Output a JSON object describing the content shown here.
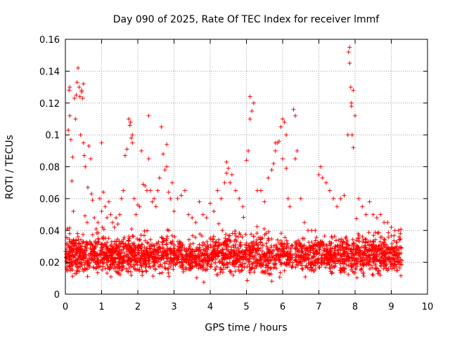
{
  "chart_data": {
    "type": "scatter",
    "title": "Day 090 of 2025, Rate Of TEC Index for receiver lmmf",
    "xlabel": "GPS time / hours",
    "ylabel": "ROTI / TECUs",
    "xlim": [
      0,
      10
    ],
    "ylim": [
      0,
      0.16
    ],
    "x_ticks": [
      "0",
      "1",
      "2",
      "3",
      "4",
      "5",
      "6",
      "7",
      "8",
      "9",
      "10"
    ],
    "y_ticks": [
      "0",
      "0.02",
      "0.04",
      "0.06",
      "0.08",
      "0.1",
      "0.12",
      "0.14",
      "0.16"
    ],
    "grid": true,
    "marker": "+",
    "color": "#ff0000",
    "series": [
      {
        "name": "ROTI",
        "x": [
          0.05,
          0.08,
          0.1,
          0.12,
          0.15,
          0.18,
          0.2,
          0.22,
          0.25,
          0.28,
          0.3,
          0.32,
          0.35,
          0.38,
          0.4,
          0.42,
          0.45,
          0.48,
          0.5,
          0.52,
          0.55,
          0.6,
          0.62,
          0.65,
          0.7,
          0.72,
          0.75,
          0.8,
          0.85,
          0.9,
          0.95,
          1.0,
          1.05,
          1.1,
          1.15,
          1.2,
          1.25,
          1.3,
          1.35,
          1.4,
          1.45,
          1.5,
          1.55,
          1.6,
          1.65,
          1.7,
          1.75,
          1.78,
          1.8,
          1.82,
          1.85,
          1.9,
          1.95,
          2.0,
          2.05,
          2.1,
          2.15,
          2.2,
          2.25,
          2.3,
          2.35,
          2.4,
          2.45,
          2.5,
          2.55,
          2.6,
          2.65,
          2.7,
          2.75,
          2.8,
          2.85,
          2.9,
          2.95,
          3.0,
          3.1,
          3.2,
          3.3,
          3.4,
          3.5,
          3.6,
          3.7,
          3.8,
          3.9,
          4.0,
          4.1,
          4.2,
          4.3,
          4.4,
          4.45,
          4.5,
          4.55,
          4.6,
          4.7,
          4.8,
          4.9,
          5.0,
          5.05,
          5.1,
          5.15,
          5.2,
          5.3,
          5.4,
          5.5,
          5.6,
          5.7,
          5.75,
          5.8,
          5.85,
          5.9,
          5.95,
          6.0,
          6.05,
          6.1,
          6.15,
          6.2,
          6.3,
          6.35,
          6.4,
          6.5,
          6.6,
          6.7,
          6.8,
          6.9,
          7.0,
          7.05,
          7.1,
          7.2,
          7.3,
          7.4,
          7.5,
          7.6,
          7.7,
          7.8,
          7.82,
          7.85,
          7.88,
          7.9,
          7.92,
          7.95,
          8.0,
          8.1,
          8.2,
          8.3,
          8.4,
          8.5,
          8.6,
          8.7,
          8.8,
          8.9,
          9.0,
          9.1,
          9.2,
          9.25,
          0.12,
          0.45,
          0.5,
          1.0,
          1.85,
          2.3,
          2.8,
          4.45,
          5.1,
          5.8,
          6.0,
          6.1,
          6.35,
          7.85,
          7.9,
          7.95,
          0.3,
          0.6,
          1.3,
          2.6,
          3.2,
          4.0,
          4.8,
          5.4,
          6.2,
          6.5,
          7.3,
          8.2,
          8.8,
          9.1,
          0.2,
          0.9,
          1.6,
          2.1,
          3.5,
          4.3,
          5.2,
          6.8,
          7.6,
          8.6
        ],
        "y": [
          0.041,
          0.103,
          0.128,
          0.112,
          0.097,
          0.071,
          0.086,
          0.052,
          0.123,
          0.11,
          0.125,
          0.133,
          0.142,
          0.13,
          0.124,
          0.1,
          0.128,
          0.123,
          0.095,
          0.087,
          0.08,
          0.045,
          0.067,
          0.093,
          0.085,
          0.063,
          0.059,
          0.048,
          0.041,
          0.045,
          0.06,
          0.052,
          0.064,
          0.055,
          0.048,
          0.058,
          0.05,
          0.045,
          0.042,
          0.048,
          0.044,
          0.05,
          0.06,
          0.065,
          0.087,
          0.091,
          0.11,
          0.106,
          0.108,
          0.098,
          0.095,
          0.06,
          0.05,
          0.056,
          0.055,
          0.09,
          0.069,
          0.068,
          0.065,
          0.112,
          0.065,
          0.058,
          0.06,
          0.055,
          0.065,
          0.073,
          0.105,
          0.088,
          0.078,
          0.08,
          0.064,
          0.06,
          0.07,
          0.052,
          0.06,
          0.062,
          0.065,
          0.05,
          0.048,
          0.045,
          0.058,
          0.05,
          0.048,
          0.057,
          0.052,
          0.065,
          0.06,
          0.07,
          0.083,
          0.079,
          0.07,
          0.075,
          0.065,
          0.06,
          0.055,
          0.084,
          0.09,
          0.124,
          0.115,
          0.12,
          0.065,
          0.065,
          0.058,
          0.073,
          0.078,
          0.082,
          0.09,
          0.095,
          0.096,
          0.105,
          0.11,
          0.108,
          0.079,
          0.06,
          0.055,
          0.116,
          0.085,
          0.09,
          0.06,
          0.045,
          0.04,
          0.04,
          0.04,
          0.075,
          0.08,
          0.073,
          0.07,
          0.065,
          0.06,
          0.055,
          0.06,
          0.062,
          0.1,
          0.152,
          0.155,
          0.13,
          0.12,
          0.1,
          0.092,
          0.112,
          0.06,
          0.055,
          0.05,
          0.058,
          0.05,
          0.048,
          0.05,
          0.045,
          0.045,
          0.042,
          0.04,
          0.04,
          0.038,
          0.13,
          0.127,
          0.132,
          0.095,
          0.1,
          0.085,
          0.094,
          0.076,
          0.11,
          0.095,
          0.085,
          0.1,
          0.112,
          0.145,
          0.118,
          0.128,
          0.028,
          0.021,
          0.026,
          0.03,
          0.025,
          0.022,
          0.027,
          0.029,
          0.024,
          0.02,
          0.022,
          0.019,
          0.024,
          0.021,
          0.018,
          0.023,
          0.02,
          0.031,
          0.028,
          0.026,
          0.033,
          0.017,
          0.015,
          0.016
        ]
      }
    ]
  }
}
